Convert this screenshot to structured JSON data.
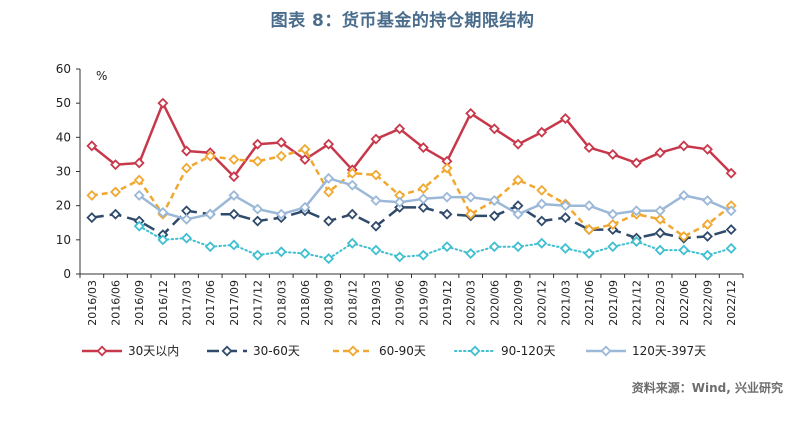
{
  "header": {
    "title": "图表 8：货币基金的持仓期限结构"
  },
  "footer": {
    "source": "资料来源：Wind, 兴业研究"
  },
  "chart_data": {
    "type": "line",
    "title": "图表 8：货币基金的持仓期限结构",
    "ylabel": "%",
    "xlabel": "",
    "ylim": [
      0,
      60
    ],
    "yticks": [
      0,
      10,
      20,
      30,
      40,
      50,
      60
    ],
    "grid": false,
    "legend_position": "bottom",
    "categories": [
      "2016/03",
      "2016/06",
      "2016/09",
      "2016/12",
      "2017/03",
      "2017/06",
      "2017/09",
      "2017/12",
      "2018/03",
      "2018/06",
      "2018/09",
      "2018/12",
      "2019/03",
      "2019/06",
      "2019/09",
      "2019/12",
      "2020/03",
      "2020/06",
      "2020/09",
      "2020/12",
      "2021/03",
      "2021/06",
      "2021/09",
      "2021/12",
      "2022/03",
      "2022/06",
      "2022/09",
      "2022/12"
    ],
    "series": [
      {
        "name": "30天以内",
        "color": "#c8384b",
        "style": "solid",
        "marker": "diamond",
        "values": [
          37.5,
          32,
          32.5,
          50,
          36,
          35.5,
          28.5,
          38,
          38.5,
          33.5,
          38,
          30.5,
          39.5,
          42.5,
          37,
          33,
          47,
          42.5,
          38,
          41.5,
          45.5,
          37,
          35,
          32.5,
          35.5,
          37.5,
          36.5,
          29.5
        ]
      },
      {
        "name": "30-60天",
        "color": "#2f4a6b",
        "style": "longdash",
        "marker": "diamond",
        "values": [
          16.5,
          17.5,
          15.5,
          11.5,
          18.5,
          17.5,
          17.5,
          15.5,
          16.5,
          18.5,
          15.5,
          17.5,
          14,
          19.5,
          19.5,
          17.5,
          17,
          17,
          20,
          15.5,
          16.5,
          13,
          13,
          10.5,
          12,
          10.5,
          11,
          13
        ]
      },
      {
        "name": "60-90天",
        "color": "#f0a830",
        "style": "dash",
        "marker": "diamond",
        "values": [
          23,
          24,
          27.5,
          17.5,
          31,
          34.5,
          33.5,
          33,
          34.5,
          36.5,
          24,
          29.5,
          29,
          23,
          25,
          31,
          17.5,
          21.5,
          27.5,
          24.5,
          20.5,
          13,
          14.5,
          17.5,
          16,
          11,
          14.5,
          20
        ]
      },
      {
        "name": "90-120天",
        "color": "#3fbfd0",
        "style": "dotted",
        "marker": "diamond",
        "values": [
          null,
          null,
          14,
          10,
          10.5,
          8,
          8.5,
          5.5,
          6.5,
          6,
          4.5,
          9,
          7,
          5,
          5.5,
          8,
          6,
          8,
          8,
          9,
          7.5,
          6,
          8,
          9.5,
          7,
          7,
          5.5,
          7.5
        ]
      },
      {
        "name": "120天-397天",
        "color": "#9bb8d8",
        "style": "solid",
        "marker": "diamond",
        "values": [
          null,
          null,
          23,
          18,
          16,
          17.5,
          23,
          19,
          17.5,
          19.5,
          28,
          26,
          21.5,
          21,
          22,
          22.5,
          22.5,
          21.5,
          17.5,
          20.5,
          20,
          20,
          17.5,
          18.5,
          18.5,
          23,
          21.5,
          18.5
        ]
      }
    ]
  }
}
